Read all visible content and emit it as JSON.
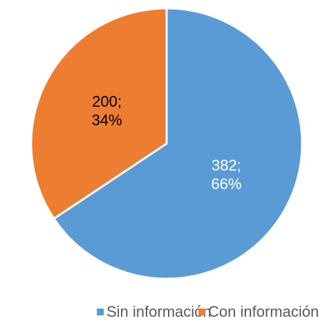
{
  "chart_data": {
    "type": "pie",
    "categories": [
      "Sin información",
      "Con información"
    ],
    "values": [
      382,
      200
    ],
    "value_labels": [
      "382;",
      "200;"
    ],
    "percent_labels": [
      "66%",
      "34%"
    ],
    "colors": [
      "#5b9bd5",
      "#ed7d31"
    ],
    "label_colors": [
      "#ffffff",
      "#000000"
    ],
    "legend": "bottom"
  }
}
